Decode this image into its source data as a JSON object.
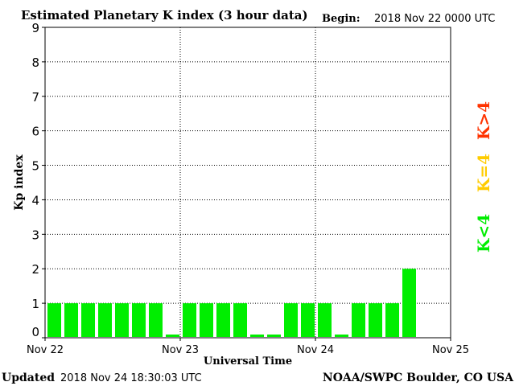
{
  "header": {
    "title": "Estimated Planetary K index (3 hour data)",
    "begin_label": "Begin:",
    "begin_value": "2018 Nov 22 0000 UTC"
  },
  "footer": {
    "updated_label": "Updated",
    "updated_value": "2018 Nov 24 18:30:03 UTC",
    "source": "NOAA/SWPC Boulder, CO USA"
  },
  "legend": [
    {
      "label": "K>4",
      "color": "#ff3300"
    },
    {
      "label": "K=4",
      "color": "#ffcc00"
    },
    {
      "label": "K<4",
      "color": "#00ee00"
    }
  ],
  "chart_data": {
    "type": "bar",
    "title": "Estimated Planetary K index (3 hour data)",
    "xlabel": "Universal Time",
    "ylabel": "Kp index",
    "ylim": [
      0,
      9
    ],
    "y_ticks": [
      "0",
      "1",
      "2",
      "3",
      "4",
      "5",
      "6",
      "7",
      "8",
      "9"
    ],
    "x_ticks": [
      "Nov 22",
      "Nov 23",
      "Nov 24",
      "Nov 25"
    ],
    "bars_per_day": 8,
    "days": 3,
    "grid": "dotted at day boundaries and integer K levels",
    "bar_color": "#00ee00",
    "values": [
      1,
      1,
      1,
      1,
      1,
      1,
      1,
      0,
      1,
      1,
      1,
      1,
      0,
      0,
      1,
      1,
      1,
      0,
      1,
      1,
      1,
      2
    ]
  }
}
